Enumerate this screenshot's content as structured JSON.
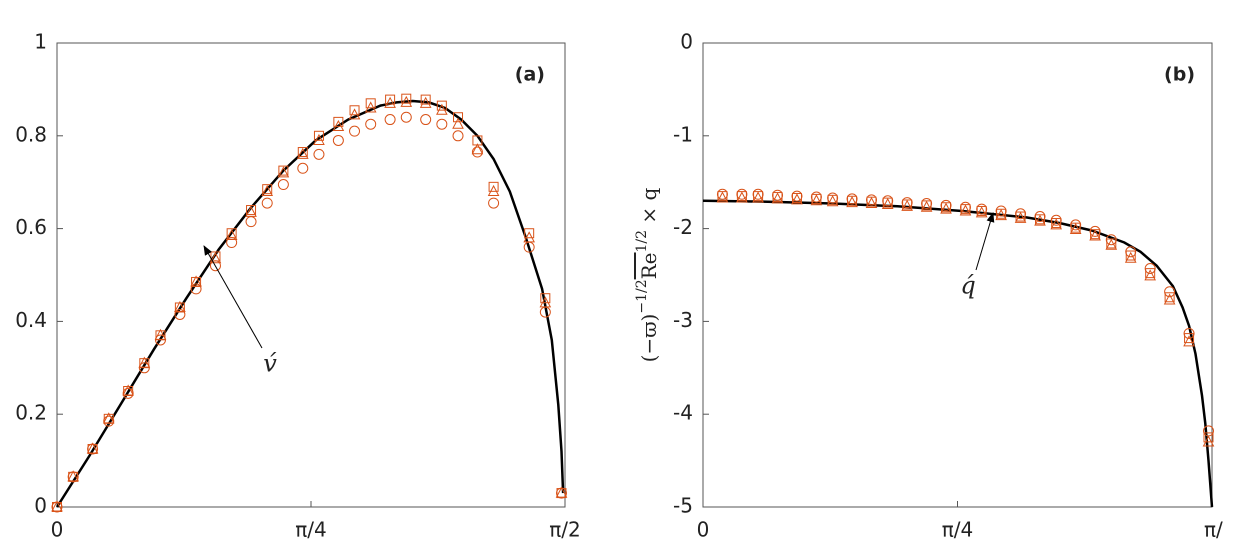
{
  "chart_data": [
    {
      "type": "line",
      "panel_label": "(a)",
      "annotation": "v́",
      "xlim": [
        0,
        1.5708
      ],
      "xticks": [
        0,
        {
          "value": 0.7854,
          "label": "π/4"
        },
        {
          "value": 1.5708,
          "label": "π/2"
        }
      ],
      "ylim": [
        0,
        1
      ],
      "yticks": [
        0,
        0.2,
        0.4,
        0.6,
        0.8,
        1
      ],
      "series": [
        {
          "marker": "line",
          "color": "#000000",
          "x": [
            0,
            0.1,
            0.2,
            0.3,
            0.4,
            0.5,
            0.6,
            0.7,
            0.8,
            0.9,
            1.0,
            1.05,
            1.1,
            1.15,
            1.2,
            1.25,
            1.3,
            1.35,
            1.4,
            1.45,
            1.5,
            1.53,
            1.55,
            1.56,
            1.565
          ],
          "values": [
            0,
            0.11,
            0.225,
            0.34,
            0.45,
            0.555,
            0.645,
            0.725,
            0.79,
            0.835,
            0.865,
            0.872,
            0.875,
            0.872,
            0.86,
            0.835,
            0.8,
            0.75,
            0.68,
            0.58,
            0.47,
            0.36,
            0.22,
            0.12,
            0.03
          ]
        },
        {
          "marker": "circle",
          "color": "#d95319",
          "x": [
            0,
            0.05,
            0.11,
            0.16,
            0.22,
            0.27,
            0.32,
            0.38,
            0.43,
            0.49,
            0.54,
            0.6,
            0.65,
            0.7,
            0.76,
            0.81,
            0.87,
            0.92,
            0.97,
            1.03,
            1.08,
            1.14,
            1.19,
            1.24,
            1.3,
            1.35,
            1.46,
            1.51,
            1.56
          ],
          "values": [
            0,
            0.065,
            0.125,
            0.185,
            0.245,
            0.3,
            0.36,
            0.415,
            0.47,
            0.52,
            0.57,
            0.615,
            0.655,
            0.695,
            0.73,
            0.76,
            0.79,
            0.81,
            0.825,
            0.835,
            0.84,
            0.835,
            0.825,
            0.8,
            0.765,
            0.655,
            0.56,
            0.42,
            0.03
          ]
        },
        {
          "marker": "square",
          "color": "#d95319",
          "x": [
            0,
            0.05,
            0.11,
            0.16,
            0.22,
            0.27,
            0.32,
            0.38,
            0.43,
            0.49,
            0.54,
            0.6,
            0.65,
            0.7,
            0.76,
            0.81,
            0.87,
            0.92,
            0.97,
            1.03,
            1.08,
            1.14,
            1.19,
            1.24,
            1.3,
            1.35,
            1.46,
            1.51,
            1.56
          ],
          "values": [
            0,
            0.065,
            0.125,
            0.19,
            0.25,
            0.31,
            0.37,
            0.43,
            0.485,
            0.54,
            0.59,
            0.64,
            0.685,
            0.725,
            0.765,
            0.8,
            0.83,
            0.855,
            0.87,
            0.878,
            0.88,
            0.878,
            0.865,
            0.84,
            0.79,
            0.69,
            0.59,
            0.45,
            0.03
          ]
        },
        {
          "marker": "triangle",
          "color": "#d95319",
          "x": [
            0,
            0.05,
            0.11,
            0.16,
            0.22,
            0.27,
            0.32,
            0.38,
            0.43,
            0.49,
            0.54,
            0.6,
            0.65,
            0.7,
            0.76,
            0.81,
            0.87,
            0.92,
            0.97,
            1.03,
            1.08,
            1.14,
            1.19,
            1.24,
            1.3,
            1.35,
            1.46,
            1.51,
            1.56
          ],
          "values": [
            0,
            0.065,
            0.125,
            0.19,
            0.25,
            0.31,
            0.37,
            0.43,
            0.485,
            0.535,
            0.585,
            0.635,
            0.68,
            0.72,
            0.76,
            0.79,
            0.82,
            0.845,
            0.86,
            0.87,
            0.872,
            0.87,
            0.855,
            0.825,
            0.77,
            0.68,
            0.58,
            0.44,
            0.03
          ]
        }
      ]
    },
    {
      "type": "line",
      "panel_label": "(b)",
      "annotation": "q́",
      "ylabel": [
        "(−ϖ)",
        "−1/2",
        "Re",
        "1/2",
        " × q"
      ],
      "xlim": [
        0,
        1.5708
      ],
      "xticks": [
        0,
        {
          "value": 0.7854,
          "label": "π/4"
        },
        {
          "value": 1.5708,
          "label": "π/"
        }
      ],
      "ylim": [
        -5,
        0
      ],
      "yticks": [
        0,
        -1,
        -2,
        -3,
        -4,
        -5
      ],
      "series": [
        {
          "marker": "line",
          "color": "#000000",
          "x": [
            0,
            0.2,
            0.4,
            0.6,
            0.8,
            1.0,
            1.1,
            1.2,
            1.3,
            1.35,
            1.4,
            1.45,
            1.48,
            1.5,
            1.52,
            1.54,
            1.55,
            1.56,
            1.5708
          ],
          "values": [
            -1.7,
            -1.71,
            -1.73,
            -1.76,
            -1.81,
            -1.88,
            -1.94,
            -2.02,
            -2.15,
            -2.25,
            -2.4,
            -2.62,
            -2.85,
            -3.05,
            -3.35,
            -3.8,
            -4.1,
            -4.5,
            -5.0
          ]
        },
        {
          "marker": "circle",
          "color": "#d95319",
          "x": [
            0.06,
            0.12,
            0.17,
            0.23,
            0.29,
            0.35,
            0.4,
            0.46,
            0.52,
            0.57,
            0.63,
            0.69,
            0.75,
            0.81,
            0.86,
            0.92,
            0.98,
            1.04,
            1.09,
            1.15,
            1.21,
            1.26,
            1.32,
            1.38,
            1.44,
            1.5,
            1.56
          ],
          "values": [
            -1.63,
            -1.63,
            -1.63,
            -1.64,
            -1.65,
            -1.66,
            -1.67,
            -1.68,
            -1.69,
            -1.7,
            -1.72,
            -1.73,
            -1.75,
            -1.77,
            -1.79,
            -1.81,
            -1.84,
            -1.87,
            -1.91,
            -1.96,
            -2.03,
            -2.12,
            -2.25,
            -2.43,
            -2.68,
            -3.13,
            -4.18
          ]
        },
        {
          "marker": "square",
          "color": "#d95319",
          "x": [
            0.06,
            0.12,
            0.17,
            0.23,
            0.29,
            0.35,
            0.4,
            0.46,
            0.52,
            0.57,
            0.63,
            0.69,
            0.75,
            0.81,
            0.86,
            0.92,
            0.98,
            1.04,
            1.09,
            1.15,
            1.21,
            1.26,
            1.32,
            1.38,
            1.44,
            1.5,
            1.56
          ],
          "values": [
            -1.65,
            -1.65,
            -1.65,
            -1.66,
            -1.67,
            -1.68,
            -1.69,
            -1.7,
            -1.71,
            -1.72,
            -1.74,
            -1.75,
            -1.77,
            -1.79,
            -1.81,
            -1.84,
            -1.87,
            -1.9,
            -1.94,
            -1.99,
            -2.06,
            -2.16,
            -2.29,
            -2.48,
            -2.74,
            -3.18,
            -4.25
          ]
        },
        {
          "marker": "triangle",
          "color": "#d95319",
          "x": [
            0.06,
            0.12,
            0.17,
            0.23,
            0.29,
            0.35,
            0.4,
            0.46,
            0.52,
            0.57,
            0.63,
            0.69,
            0.75,
            0.81,
            0.86,
            0.92,
            0.98,
            1.04,
            1.09,
            1.15,
            1.21,
            1.26,
            1.32,
            1.38,
            1.44,
            1.5,
            1.56
          ],
          "values": [
            -1.67,
            -1.67,
            -1.67,
            -1.68,
            -1.69,
            -1.7,
            -1.71,
            -1.72,
            -1.73,
            -1.74,
            -1.76,
            -1.77,
            -1.79,
            -1.81,
            -1.83,
            -1.86,
            -1.89,
            -1.92,
            -1.96,
            -2.01,
            -2.08,
            -2.18,
            -2.32,
            -2.51,
            -2.77,
            -3.22,
            -4.3
          ]
        }
      ]
    }
  ]
}
